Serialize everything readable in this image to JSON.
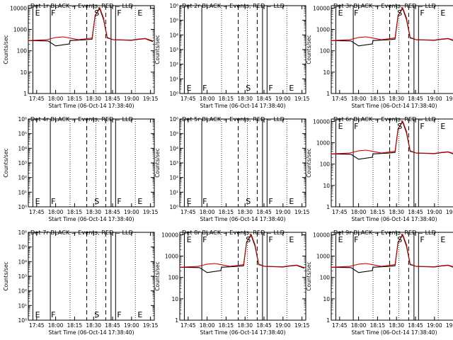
{
  "figure": {
    "x_ticks": [
      "17:45",
      "18:00",
      "18:15",
      "18:30",
      "18:45",
      "19:00",
      "19:15"
    ],
    "xlabel": "Start Time (06-Oct-14 17:38:40)",
    "ylabel": "Counts/sec"
  },
  "chart_data": [
    {
      "type": "line",
      "title": "Det 1r BLACK = Events, RED = LLD",
      "has_data": true,
      "ylim": [
        1,
        13000
      ],
      "y_ticks": [
        "1",
        "10",
        "100",
        "1000",
        "10000"
      ],
      "markers": [
        {
          "label": "E",
          "time": 17.72
        },
        {
          "label": "F",
          "time": 17.93
        },
        {
          "label": "S",
          "time": 18.5
        },
        {
          "label": "F",
          "time": 18.8
        },
        {
          "label": "E",
          "time": 19.07
        }
      ],
      "series": [
        {
          "color": "#000000",
          "points": [
            [
              17.64,
              300
            ],
            [
              17.9,
              290
            ],
            [
              18.0,
              170
            ],
            [
              18.18,
              210
            ],
            [
              18.19,
              300
            ],
            [
              18.4,
              330
            ],
            [
              18.48,
              350
            ],
            [
              18.52,
              4500
            ],
            [
              18.58,
              9500
            ],
            [
              18.63,
              3000
            ],
            [
              18.68,
              400
            ],
            [
              18.76,
              330
            ],
            [
              19.0,
              310
            ],
            [
              19.08,
              340
            ],
            [
              19.18,
              370
            ],
            [
              19.28,
              270
            ]
          ]
        },
        {
          "color": "#cc0000",
          "points": [
            [
              17.64,
              300
            ],
            [
              17.88,
              330
            ],
            [
              18.0,
              420
            ],
            [
              18.1,
              450
            ],
            [
              18.18,
              400
            ],
            [
              18.3,
              330
            ],
            [
              18.48,
              400
            ],
            [
              18.52,
              4500
            ],
            [
              18.58,
              10500
            ],
            [
              18.63,
              3500
            ],
            [
              18.68,
              420
            ],
            [
              18.76,
              330
            ],
            [
              19.0,
              320
            ],
            [
              19.08,
              350
            ],
            [
              19.18,
              380
            ],
            [
              19.28,
              290
            ]
          ]
        }
      ]
    },
    {
      "type": "line",
      "title": "Det 2r BLACK = Events, RED = LLD",
      "has_data": false,
      "ylim": [
        1,
        1000000
      ],
      "y_ticks": [
        "10⁰",
        "10¹",
        "10²",
        "10³",
        "10⁴",
        "10⁵",
        "10⁶"
      ],
      "markers": [
        {
          "label": "E",
          "time": 17.72
        },
        {
          "label": "F",
          "time": 17.93
        },
        {
          "label": "S",
          "time": 18.5
        },
        {
          "label": "F",
          "time": 18.8
        },
        {
          "label": "E",
          "time": 19.07
        }
      ],
      "series": []
    },
    {
      "type": "line",
      "title": "Det 3r BLACK = Events, RED = LLD",
      "has_data": true,
      "ylim": [
        1,
        13000
      ],
      "y_ticks": [
        "1",
        "10",
        "100",
        "1000",
        "10000"
      ],
      "markers": [
        {
          "label": "E",
          "time": 17.72
        },
        {
          "label": "F",
          "time": 17.93
        },
        {
          "label": "S",
          "time": 18.5
        },
        {
          "label": "F",
          "time": 18.8
        },
        {
          "label": "E",
          "time": 19.07
        }
      ],
      "series": [
        {
          "color": "#000000",
          "points": [
            [
              17.64,
              300
            ],
            [
              17.9,
              290
            ],
            [
              18.0,
              170
            ],
            [
              18.18,
              210
            ],
            [
              18.19,
              300
            ],
            [
              18.4,
              330
            ],
            [
              18.48,
              350
            ],
            [
              18.52,
              4500
            ],
            [
              18.58,
              9500
            ],
            [
              18.63,
              3000
            ],
            [
              18.68,
              400
            ],
            [
              18.76,
              330
            ],
            [
              19.0,
              310
            ],
            [
              19.08,
              340
            ],
            [
              19.18,
              370
            ],
            [
              19.28,
              270
            ]
          ]
        },
        {
          "color": "#cc0000",
          "points": [
            [
              17.64,
              300
            ],
            [
              17.88,
              330
            ],
            [
              18.0,
              420
            ],
            [
              18.1,
              450
            ],
            [
              18.18,
              400
            ],
            [
              18.3,
              330
            ],
            [
              18.48,
              400
            ],
            [
              18.52,
              4500
            ],
            [
              18.58,
              10500
            ],
            [
              18.63,
              3500
            ],
            [
              18.68,
              420
            ],
            [
              18.76,
              330
            ],
            [
              19.0,
              320
            ],
            [
              19.08,
              350
            ],
            [
              19.18,
              380
            ],
            [
              19.28,
              290
            ]
          ]
        }
      ]
    },
    {
      "type": "line",
      "title": "Det 4r BLACK = Events, RED = LLD",
      "has_data": false,
      "ylim": [
        1,
        1000000
      ],
      "y_ticks": [
        "10⁰",
        "10¹",
        "10²",
        "10³",
        "10⁴",
        "10⁵",
        "10⁶"
      ],
      "markers": [
        {
          "label": "E",
          "time": 17.72
        },
        {
          "label": "F",
          "time": 17.93
        },
        {
          "label": "S",
          "time": 18.5
        },
        {
          "label": "F",
          "time": 18.8
        },
        {
          "label": "E",
          "time": 19.07
        }
      ],
      "series": []
    },
    {
      "type": "line",
      "title": "Det 5r BLACK = Events, RED = LLD",
      "has_data": false,
      "ylim": [
        1,
        1000000
      ],
      "y_ticks": [
        "10⁰",
        "10¹",
        "10²",
        "10³",
        "10⁴",
        "10⁵",
        "10⁶"
      ],
      "markers": [
        {
          "label": "E",
          "time": 17.72
        },
        {
          "label": "F",
          "time": 17.93
        },
        {
          "label": "S",
          "time": 18.5
        },
        {
          "label": "F",
          "time": 18.8
        },
        {
          "label": "E",
          "time": 19.07
        }
      ],
      "series": []
    },
    {
      "type": "line",
      "title": "Det 6r BLACK = Events, RED = LLD",
      "has_data": true,
      "ylim": [
        1,
        13000
      ],
      "y_ticks": [
        "1",
        "10",
        "100",
        "1000",
        "10000"
      ],
      "markers": [
        {
          "label": "E",
          "time": 17.72
        },
        {
          "label": "F",
          "time": 17.93
        },
        {
          "label": "S",
          "time": 18.5
        },
        {
          "label": "F",
          "time": 18.8
        },
        {
          "label": "E",
          "time": 19.07
        }
      ],
      "series": [
        {
          "color": "#000000",
          "points": [
            [
              17.64,
              300
            ],
            [
              17.9,
              290
            ],
            [
              18.0,
              170
            ],
            [
              18.18,
              210
            ],
            [
              18.19,
              300
            ],
            [
              18.4,
              330
            ],
            [
              18.48,
              350
            ],
            [
              18.52,
              4500
            ],
            [
              18.58,
              9500
            ],
            [
              18.63,
              3000
            ],
            [
              18.68,
              400
            ],
            [
              18.76,
              330
            ],
            [
              19.0,
              310
            ],
            [
              19.08,
              340
            ],
            [
              19.18,
              370
            ],
            [
              19.28,
              270
            ]
          ]
        },
        {
          "color": "#cc0000",
          "points": [
            [
              17.64,
              300
            ],
            [
              17.88,
              330
            ],
            [
              18.0,
              420
            ],
            [
              18.1,
              450
            ],
            [
              18.18,
              400
            ],
            [
              18.3,
              330
            ],
            [
              18.48,
              400
            ],
            [
              18.52,
              4500
            ],
            [
              18.58,
              10500
            ],
            [
              18.63,
              3500
            ],
            [
              18.68,
              420
            ],
            [
              18.76,
              330
            ],
            [
              19.0,
              320
            ],
            [
              19.08,
              350
            ],
            [
              19.18,
              380
            ],
            [
              19.28,
              290
            ]
          ]
        }
      ]
    },
    {
      "type": "line",
      "title": "Det 7r BLACK = Events, RED = LLD",
      "has_data": false,
      "ylim": [
        1,
        1000000
      ],
      "y_ticks": [
        "10⁰",
        "10¹",
        "10²",
        "10³",
        "10⁴",
        "10⁵",
        "10⁶"
      ],
      "markers": [
        {
          "label": "E",
          "time": 17.72
        },
        {
          "label": "F",
          "time": 17.93
        },
        {
          "label": "S",
          "time": 18.5
        },
        {
          "label": "F",
          "time": 18.8
        },
        {
          "label": "E",
          "time": 19.07
        }
      ],
      "series": []
    },
    {
      "type": "line",
      "title": "Det 8r BLACK = Events, RED = LLD",
      "has_data": true,
      "ylim": [
        1,
        13000
      ],
      "y_ticks": [
        "1",
        "10",
        "100",
        "1000",
        "10000"
      ],
      "markers": [
        {
          "label": "E",
          "time": 17.72
        },
        {
          "label": "F",
          "time": 17.93
        },
        {
          "label": "S",
          "time": 18.5
        },
        {
          "label": "F",
          "time": 18.8
        },
        {
          "label": "E",
          "time": 19.07
        }
      ],
      "series": [
        {
          "color": "#000000",
          "points": [
            [
              17.64,
              300
            ],
            [
              17.9,
              290
            ],
            [
              18.0,
              170
            ],
            [
              18.18,
              210
            ],
            [
              18.19,
              300
            ],
            [
              18.4,
              330
            ],
            [
              18.48,
              350
            ],
            [
              18.52,
              4500
            ],
            [
              18.58,
              9500
            ],
            [
              18.63,
              3000
            ],
            [
              18.68,
              400
            ],
            [
              18.76,
              330
            ],
            [
              19.0,
              310
            ],
            [
              19.08,
              340
            ],
            [
              19.18,
              370
            ],
            [
              19.28,
              270
            ]
          ]
        },
        {
          "color": "#cc0000",
          "points": [
            [
              17.64,
              300
            ],
            [
              17.88,
              330
            ],
            [
              18.0,
              420
            ],
            [
              18.1,
              450
            ],
            [
              18.18,
              400
            ],
            [
              18.3,
              330
            ],
            [
              18.48,
              400
            ],
            [
              18.52,
              4500
            ],
            [
              18.58,
              10500
            ],
            [
              18.63,
              3500
            ],
            [
              18.68,
              420
            ],
            [
              18.76,
              330
            ],
            [
              19.0,
              320
            ],
            [
              19.08,
              350
            ],
            [
              19.18,
              380
            ],
            [
              19.28,
              290
            ]
          ]
        }
      ]
    },
    {
      "type": "line",
      "title": "Det 9r BLACK = Events, RED = LLD",
      "has_data": true,
      "ylim": [
        1,
        13000
      ],
      "y_ticks": [
        "1",
        "10",
        "100",
        "1000",
        "10000"
      ],
      "markers": [
        {
          "label": "E",
          "time": 17.72
        },
        {
          "label": "F",
          "time": 17.93
        },
        {
          "label": "S",
          "time": 18.5
        },
        {
          "label": "F",
          "time": 18.8
        },
        {
          "label": "E",
          "time": 19.07
        }
      ],
      "series": [
        {
          "color": "#000000",
          "points": [
            [
              17.64,
              300
            ],
            [
              17.9,
              290
            ],
            [
              18.0,
              170
            ],
            [
              18.18,
              210
            ],
            [
              18.19,
              300
            ],
            [
              18.4,
              330
            ],
            [
              18.48,
              350
            ],
            [
              18.52,
              4500
            ],
            [
              18.58,
              9500
            ],
            [
              18.63,
              3000
            ],
            [
              18.68,
              400
            ],
            [
              18.76,
              330
            ],
            [
              19.0,
              310
            ],
            [
              19.08,
              340
            ],
            [
              19.18,
              370
            ],
            [
              19.28,
              270
            ]
          ]
        },
        {
          "color": "#cc0000",
          "points": [
            [
              17.64,
              300
            ],
            [
              17.88,
              330
            ],
            [
              18.0,
              420
            ],
            [
              18.1,
              450
            ],
            [
              18.18,
              400
            ],
            [
              18.3,
              330
            ],
            [
              18.48,
              400
            ],
            [
              18.52,
              4500
            ],
            [
              18.58,
              10500
            ],
            [
              18.63,
              3500
            ],
            [
              18.68,
              420
            ],
            [
              18.76,
              330
            ],
            [
              19.0,
              320
            ],
            [
              19.08,
              350
            ],
            [
              19.18,
              380
            ],
            [
              19.28,
              290
            ]
          ]
        }
      ]
    }
  ]
}
